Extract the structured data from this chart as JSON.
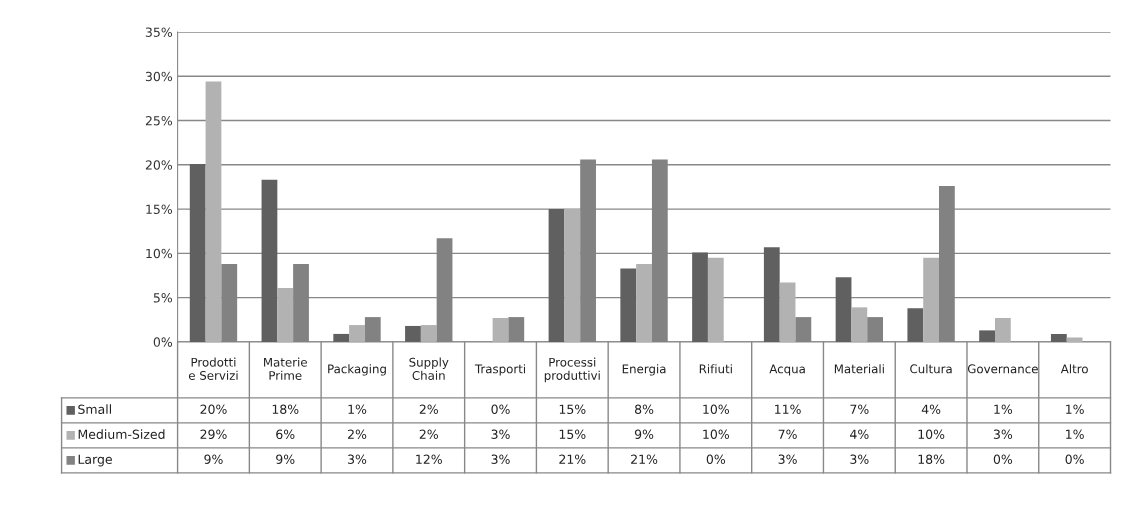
{
  "chart_data": {
    "type": "bar",
    "categories": [
      "Prodotti e Servizi",
      "Materie Prime",
      "Packaging",
      "Supply Chain",
      "Trasporti",
      "Processi produttivi",
      "Energia",
      "Rifiuti",
      "Acqua",
      "Materiali",
      "Cultura",
      "Governance",
      "Altro"
    ],
    "series": [
      {
        "name": "Small",
        "color": "#606060",
        "values": [
          20.1,
          18.3,
          0.9,
          1.8,
          0,
          15,
          8.3,
          10.1,
          10.7,
          7.3,
          3.8,
          1.3,
          0.9
        ],
        "value_labels": [
          "20%",
          "18%",
          "1%",
          "2%",
          "0%",
          "15%",
          "8%",
          "10%",
          "11%",
          "7%",
          "4%",
          "1%",
          "1%"
        ]
      },
      {
        "name": "Medium-Sized",
        "color": "#b2b2b2",
        "values": [
          29.4,
          6.1,
          1.9,
          1.9,
          2.7,
          15,
          8.8,
          9.5,
          6.7,
          3.9,
          9.5,
          2.7,
          0.5
        ],
        "value_labels": [
          "29%",
          "6%",
          "2%",
          "2%",
          "3%",
          "15%",
          "9%",
          "10%",
          "7%",
          "4%",
          "10%",
          "3%",
          "1%"
        ]
      },
      {
        "name": "Large",
        "color": "#828282",
        "values": [
          8.8,
          8.8,
          2.8,
          11.7,
          2.8,
          20.6,
          20.6,
          0,
          2.8,
          2.8,
          17.6,
          0,
          0
        ],
        "value_labels": [
          "9%",
          "9%",
          "3%",
          "12%",
          "3%",
          "21%",
          "21%",
          "0%",
          "3%",
          "3%",
          "18%",
          "0%",
          "0%"
        ]
      }
    ],
    "ylim": [
      0,
      35
    ],
    "yticks": [
      {
        "value": 0,
        "label": "0%"
      },
      {
        "value": 5,
        "label": "5%"
      },
      {
        "value": 10,
        "label": "10%"
      },
      {
        "value": 15,
        "label": "15%"
      },
      {
        "value": 20,
        "label": "20%"
      },
      {
        "value": 25,
        "label": "25%"
      },
      {
        "value": 30,
        "label": "30%"
      },
      {
        "value": 35,
        "label": "35%"
      }
    ],
    "grid": "y",
    "legend": "bottom left"
  }
}
